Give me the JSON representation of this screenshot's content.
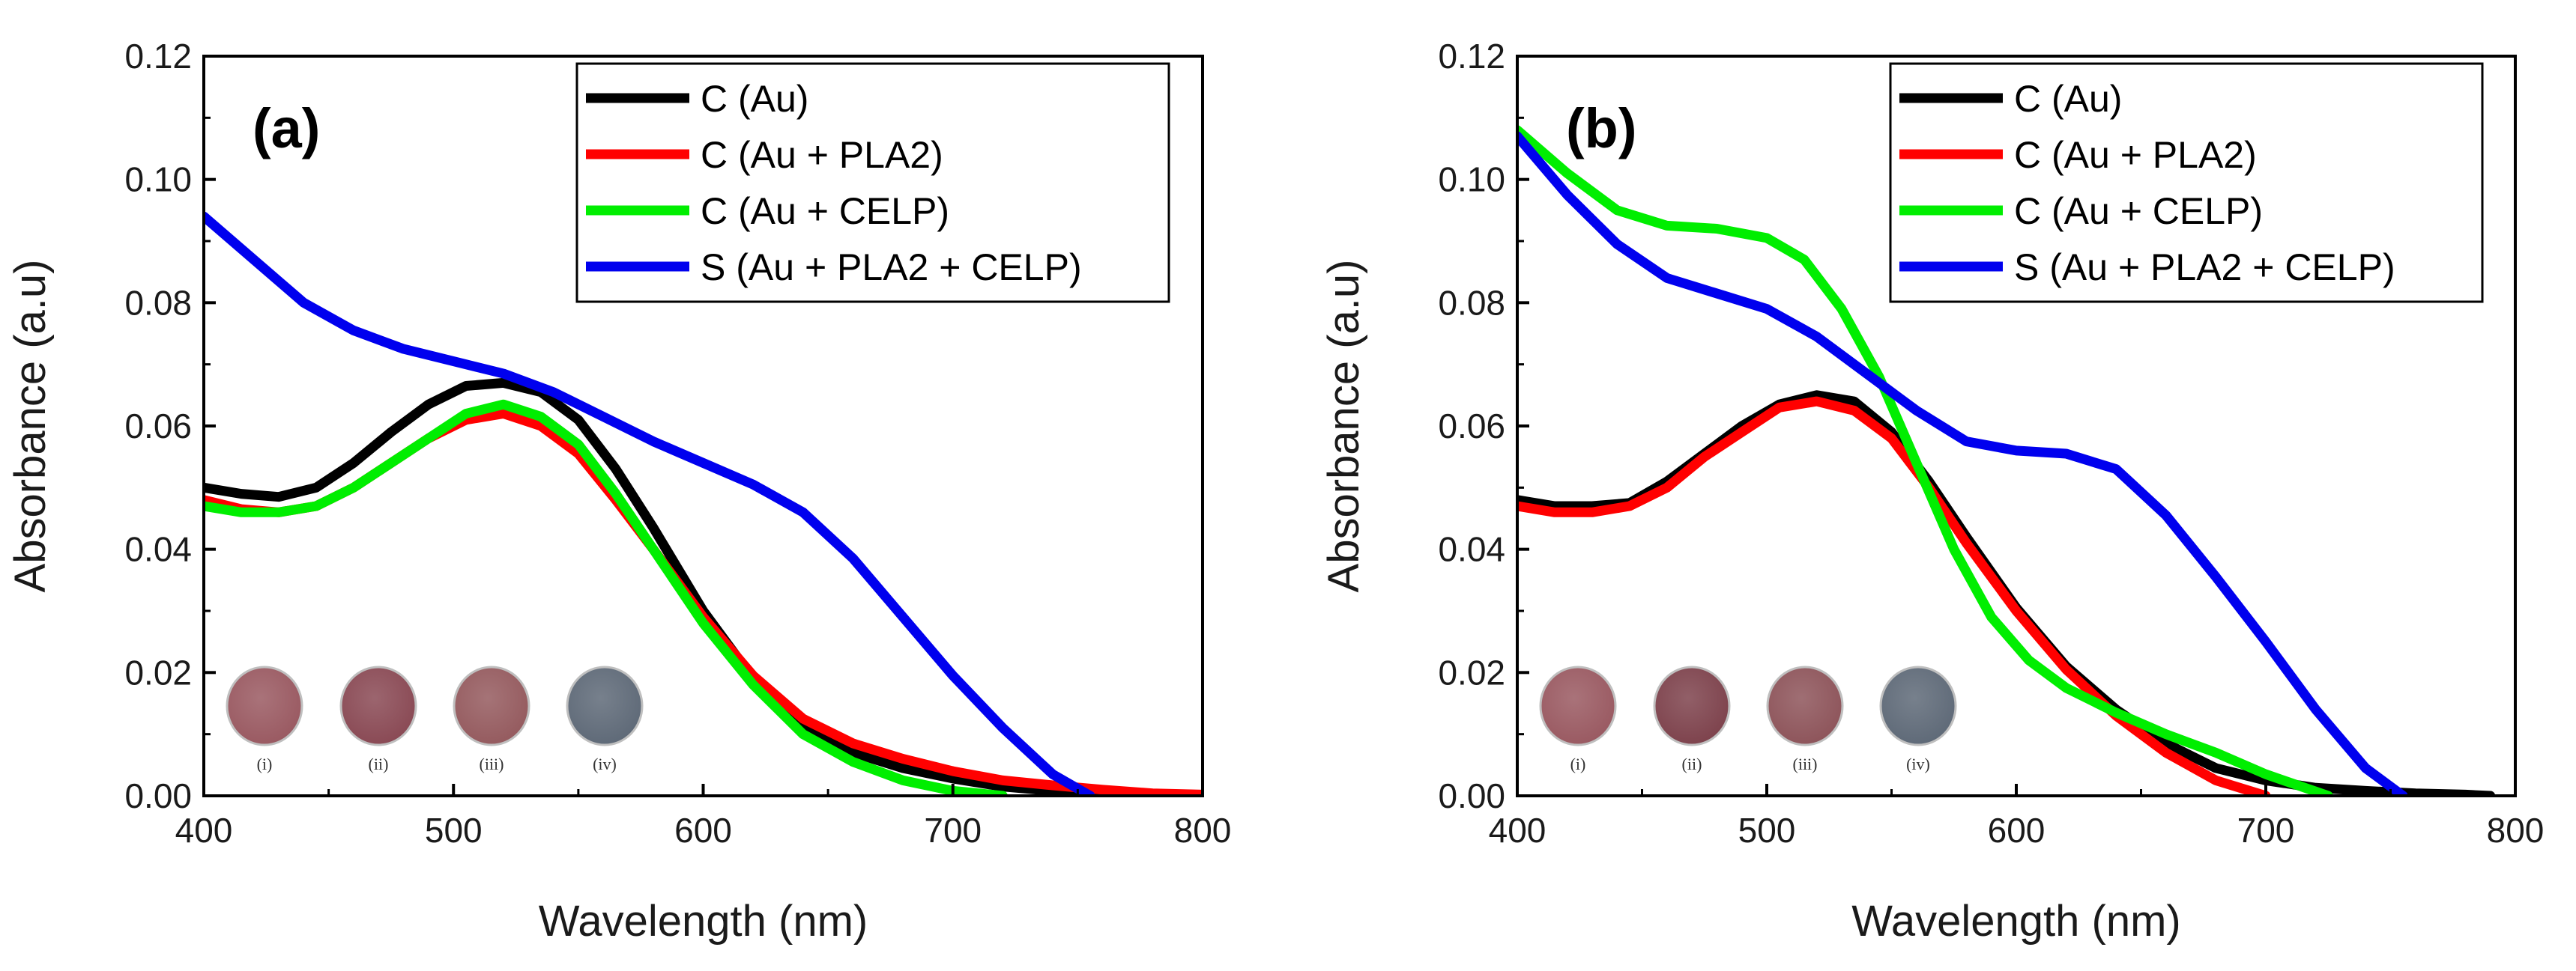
{
  "chart_data": [
    {
      "type": "line",
      "panel_label": "(a)",
      "xlabel": "Wavelength (nm)",
      "ylabel": "Absorbance (a.u)",
      "xlim": [
        400,
        800
      ],
      "ylim": [
        0,
        0.12
      ],
      "xticks": [
        "400",
        "500",
        "600",
        "700",
        "800"
      ],
      "yticks": [
        "0.00",
        "0.02",
        "0.04",
        "0.06",
        "0.08",
        "0.10",
        "0.12"
      ],
      "grid": false,
      "legend_position": "top-right",
      "series": [
        {
          "name": "C (Au)",
          "color": "#000000",
          "x": [
            400,
            415,
            430,
            445,
            460,
            475,
            490,
            505,
            520,
            535,
            550,
            565,
            580,
            600,
            620,
            640,
            660,
            680,
            700,
            720,
            740,
            760
          ],
          "y": [
            0.05,
            0.049,
            0.0485,
            0.05,
            0.054,
            0.059,
            0.0635,
            0.0665,
            0.067,
            0.0655,
            0.061,
            0.053,
            0.0435,
            0.03,
            0.019,
            0.011,
            0.007,
            0.0045,
            0.0028,
            0.0015,
            0.0008,
            0.0003
          ]
        },
        {
          "name": "C (Au + PLA2)",
          "color": "#ff0000",
          "x": [
            400,
            415,
            430,
            445,
            460,
            475,
            490,
            505,
            520,
            535,
            550,
            565,
            580,
            600,
            620,
            640,
            660,
            680,
            700,
            720,
            740,
            760,
            780,
            800
          ],
          "y": [
            0.048,
            0.0465,
            0.046,
            0.047,
            0.05,
            0.054,
            0.058,
            0.061,
            0.062,
            0.06,
            0.0555,
            0.048,
            0.04,
            0.029,
            0.0195,
            0.0125,
            0.0085,
            0.006,
            0.004,
            0.0025,
            0.0017,
            0.001,
            0.0004,
            0.0002
          ]
        },
        {
          "name": "C (Au + CELP)",
          "color": "#00ee00",
          "x": [
            400,
            415,
            430,
            445,
            460,
            475,
            490,
            505,
            520,
            535,
            550,
            565,
            580,
            600,
            620,
            640,
            660,
            680,
            700,
            720
          ],
          "y": [
            0.047,
            0.046,
            0.046,
            0.047,
            0.05,
            0.054,
            0.058,
            0.062,
            0.0635,
            0.0615,
            0.057,
            0.049,
            0.04,
            0.028,
            0.018,
            0.01,
            0.0055,
            0.0025,
            0.0008,
            0.0
          ]
        },
        {
          "name": "S (Au + PLA2 + CELP)",
          "color": "#0000ee",
          "x": [
            400,
            420,
            440,
            460,
            480,
            500,
            520,
            540,
            560,
            580,
            600,
            620,
            640,
            660,
            680,
            700,
            720,
            740,
            755
          ],
          "y": [
            0.094,
            0.087,
            0.08,
            0.0755,
            0.0725,
            0.0705,
            0.0685,
            0.0655,
            0.0615,
            0.0575,
            0.054,
            0.0505,
            0.046,
            0.0385,
            0.029,
            0.0195,
            0.011,
            0.0035,
            0.0
          ]
        }
      ],
      "inset_labels": [
        "(i)",
        "(ii)",
        "(iii)",
        "(iv)"
      ],
      "inset_colors": [
        "#9a5a62",
        "#8a4a55",
        "#955b5f",
        "#5f6a78"
      ]
    },
    {
      "type": "line",
      "panel_label": "(b)",
      "xlabel": "Wavelength (nm)",
      "ylabel": "Absorbance (a.u)",
      "xlim": [
        400,
        800
      ],
      "ylim": [
        0,
        0.12
      ],
      "xticks": [
        "400",
        "500",
        "600",
        "700",
        "800"
      ],
      "yticks": [
        "0.00",
        "0.02",
        "0.04",
        "0.06",
        "0.08",
        "0.10",
        "0.12"
      ],
      "grid": false,
      "legend_position": "top-right",
      "series": [
        {
          "name": "C (Au)",
          "color": "#000000",
          "x": [
            400,
            415,
            430,
            445,
            460,
            475,
            490,
            505,
            520,
            535,
            550,
            565,
            580,
            600,
            620,
            640,
            660,
            680,
            700,
            720,
            740,
            760,
            780,
            790
          ],
          "y": [
            0.048,
            0.047,
            0.047,
            0.0475,
            0.051,
            0.0555,
            0.06,
            0.0635,
            0.065,
            0.064,
            0.059,
            0.051,
            0.042,
            0.0305,
            0.021,
            0.014,
            0.0085,
            0.0045,
            0.0025,
            0.0013,
            0.0008,
            0.0004,
            0.0002,
            0.0
          ]
        },
        {
          "name": "C (Au + PLA2)",
          "color": "#ff0000",
          "x": [
            400,
            415,
            430,
            445,
            460,
            475,
            490,
            505,
            520,
            535,
            550,
            565,
            580,
            600,
            620,
            640,
            660,
            680,
            700
          ],
          "y": [
            0.047,
            0.046,
            0.046,
            0.047,
            0.05,
            0.055,
            0.059,
            0.063,
            0.064,
            0.0625,
            0.058,
            0.05,
            0.041,
            0.03,
            0.0205,
            0.013,
            0.007,
            0.0025,
            0.0
          ]
        },
        {
          "name": "C (Au + CELP)",
          "color": "#00ee00",
          "x": [
            400,
            420,
            440,
            460,
            480,
            500,
            515,
            530,
            545,
            560,
            575,
            590,
            605,
            620,
            640,
            660,
            680,
            700,
            725
          ],
          "y": [
            0.108,
            0.101,
            0.095,
            0.0925,
            0.092,
            0.0905,
            0.087,
            0.079,
            0.068,
            0.054,
            0.04,
            0.029,
            0.022,
            0.0175,
            0.0135,
            0.01,
            0.007,
            0.0035,
            0.0
          ]
        },
        {
          "name": "S (Au + PLA2 + CELP)",
          "color": "#0000ee",
          "x": [
            400,
            420,
            440,
            460,
            480,
            500,
            520,
            540,
            560,
            580,
            600,
            620,
            640,
            660,
            680,
            700,
            720,
            740,
            755
          ],
          "y": [
            0.107,
            0.0975,
            0.0895,
            0.084,
            0.0815,
            0.079,
            0.0745,
            0.0685,
            0.0625,
            0.0575,
            0.056,
            0.0555,
            0.053,
            0.0455,
            0.0355,
            0.025,
            0.014,
            0.0045,
            0.0
          ]
        }
      ],
      "inset_labels": [
        "(i)",
        "(ii)",
        "(iii)",
        "(iv)"
      ],
      "inset_colors": [
        "#9a5a62",
        "#7e434d",
        "#8e555b",
        "#5f6a78"
      ]
    }
  ]
}
